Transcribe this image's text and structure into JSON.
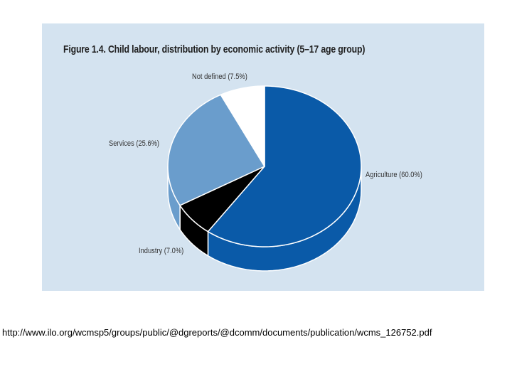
{
  "chart_data": {
    "type": "pie",
    "title": "Figure 1.4. Child labour, distribution by economic activity (5–17 age group)",
    "slices": [
      {
        "label": "Agriculture (60.0%)",
        "value": 60.0,
        "color": "#0a5aa8",
        "side_color": "#0a5aa8"
      },
      {
        "label": "Industry (7.0%)",
        "value": 7.0,
        "color": "#000000",
        "side_color": "#000000"
      },
      {
        "label": "Services (25.6%)",
        "value": 25.6,
        "color": "#6a9dcc",
        "side_color": "#6a9dcc"
      },
      {
        "label": "Not defined (7.5%)",
        "value": 7.5,
        "color": "#ffffff",
        "side_color": "#ffffff"
      }
    ],
    "start": "top",
    "direction": "clockwise",
    "legend": "none (labels beside slices)"
  },
  "colors": {
    "panel_background": "#d4e3f0",
    "page_background": "#ffffff",
    "slice_border": "#ffffff"
  },
  "source": {
    "url_text": "http://www.ilo.org/wcmsp5/groups/public/@dgreports/@dcomm/documents/publication/wcms_126752.pdf"
  }
}
